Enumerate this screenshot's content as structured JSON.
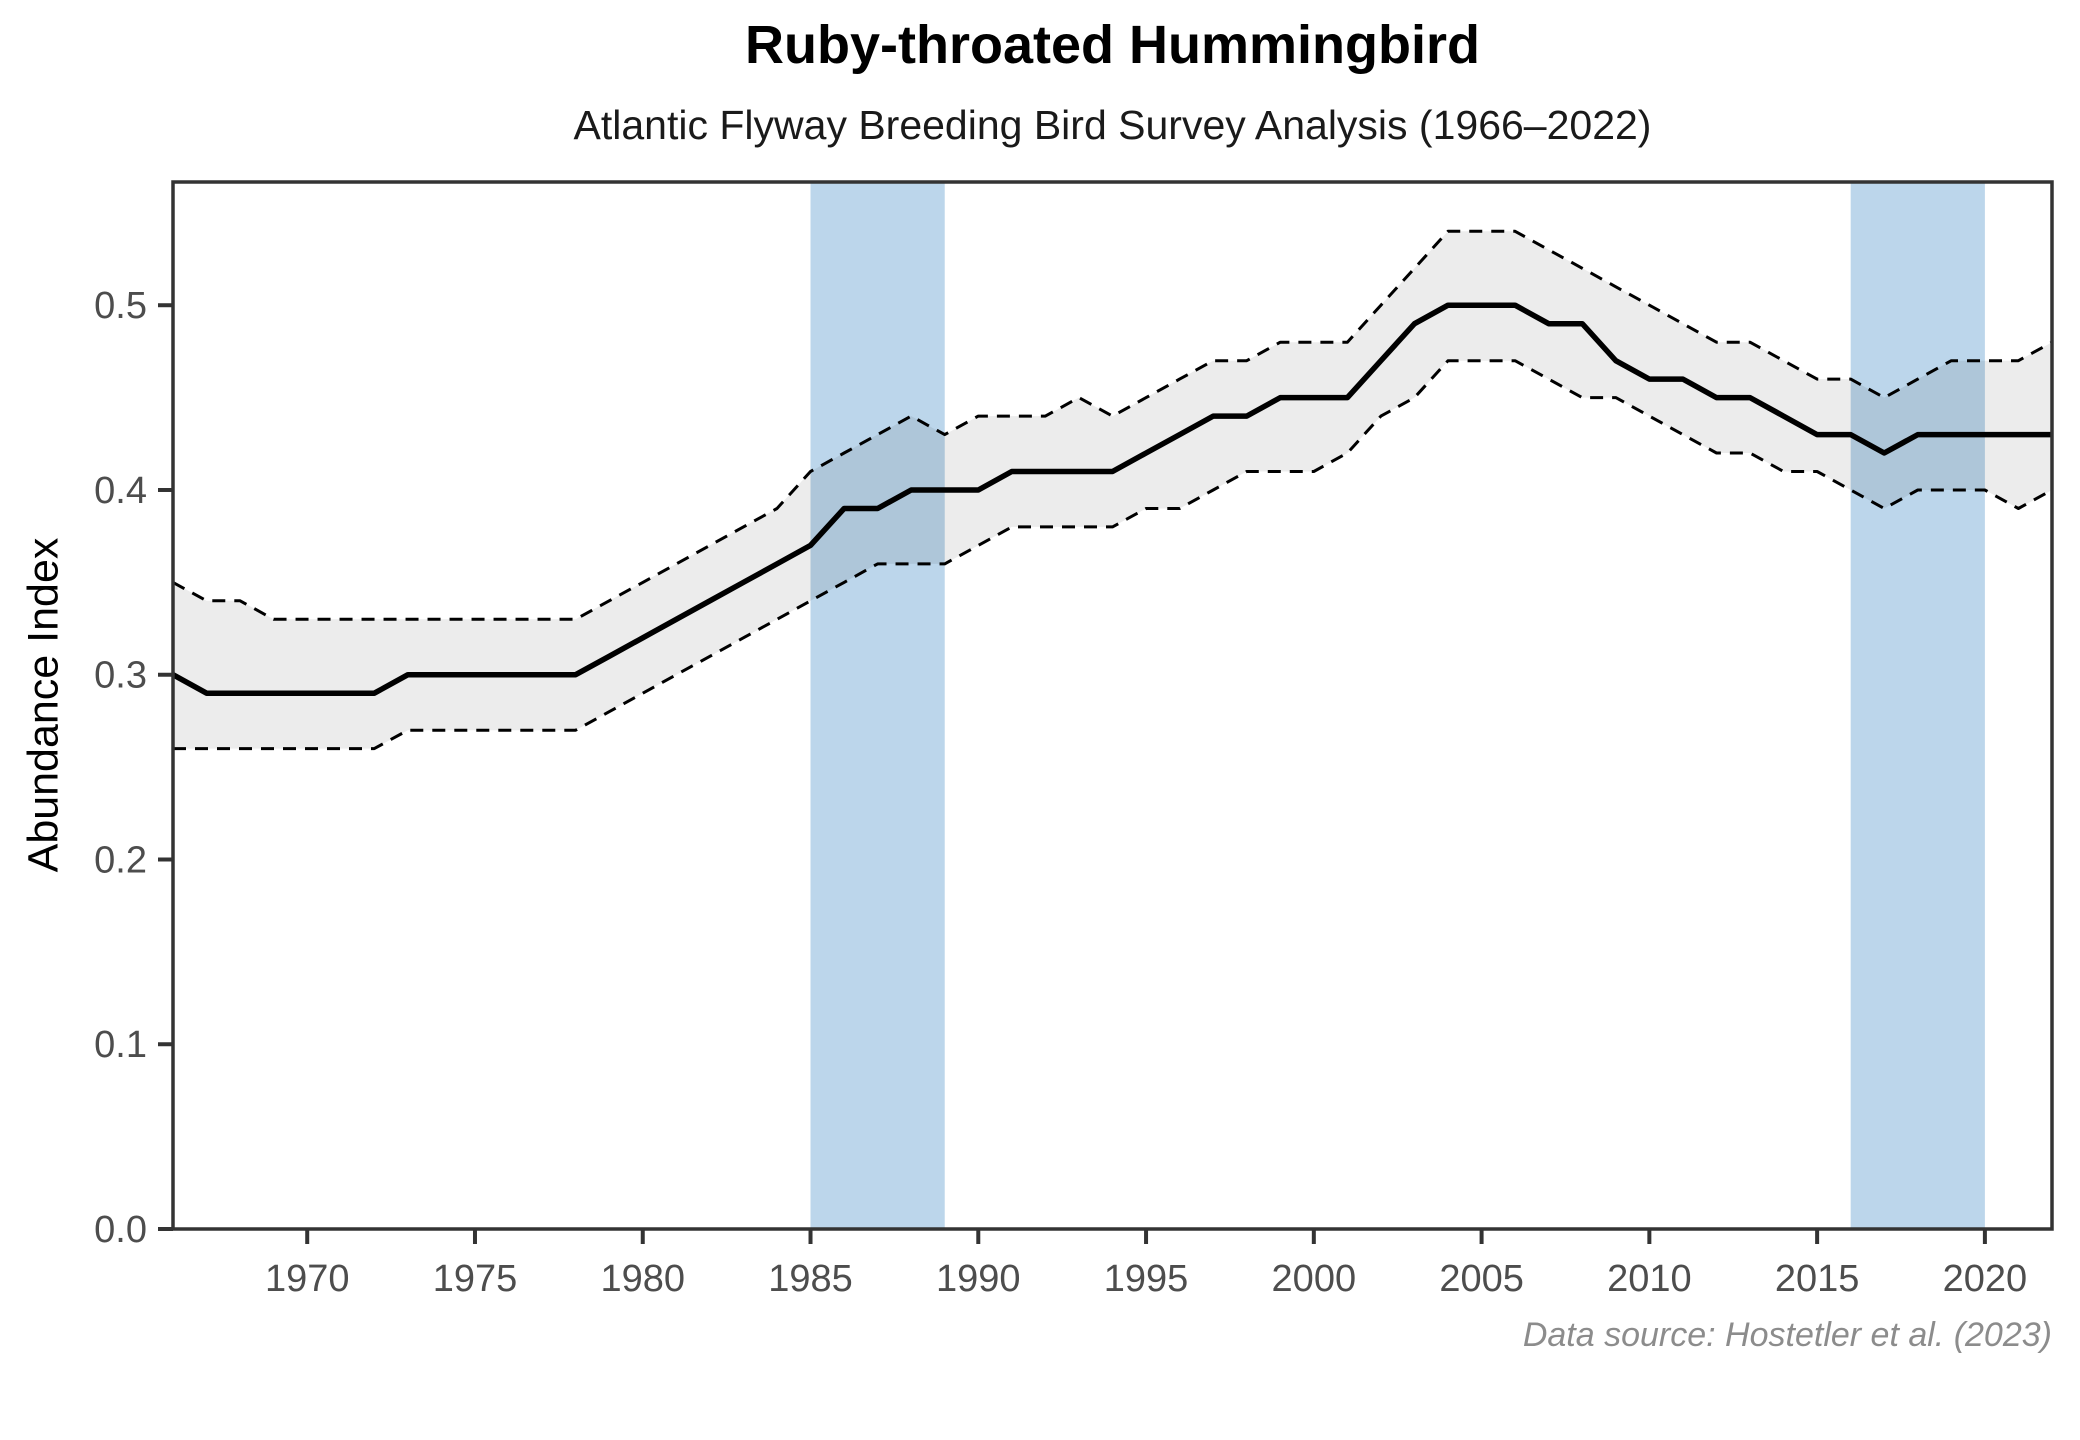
{
  "title": "Ruby-throated Hummingbird",
  "subtitle": "Atlantic Flyway Breeding Bird Survey Analysis (1966–2022)",
  "caption": "Data source: Hostetler et al. (2023)",
  "chart_data": {
    "type": "line",
    "title": "Ruby-throated Hummingbird",
    "subtitle": "Atlantic Flyway Breeding Bird Survey Analysis (1966–2022)",
    "xlabel": "",
    "ylabel": "Abundance Index",
    "xlim": [
      1966,
      2022
    ],
    "ylim": [
      0,
      0.5667
    ],
    "x_ticks": [
      1970,
      1975,
      1980,
      1985,
      1990,
      1995,
      2000,
      2005,
      2010,
      2015,
      2020
    ],
    "y_ticks": [
      0.0,
      0.1,
      0.2,
      0.3,
      0.4,
      0.5
    ],
    "grid": false,
    "legend": "none",
    "x": [
      1966,
      1967,
      1968,
      1969,
      1970,
      1971,
      1972,
      1973,
      1974,
      1975,
      1976,
      1977,
      1978,
      1979,
      1980,
      1981,
      1982,
      1983,
      1984,
      1985,
      1986,
      1987,
      1988,
      1989,
      1990,
      1991,
      1992,
      1993,
      1994,
      1995,
      1996,
      1997,
      1998,
      1999,
      2000,
      2001,
      2002,
      2003,
      2004,
      2005,
      2006,
      2007,
      2008,
      2009,
      2010,
      2011,
      2012,
      2013,
      2014,
      2015,
      2016,
      2017,
      2018,
      2019,
      2020,
      2021,
      2022
    ],
    "series": [
      {
        "name": "Abundance index",
        "style": "solid",
        "values": [
          0.3,
          0.29,
          0.29,
          0.29,
          0.29,
          0.29,
          0.29,
          0.3,
          0.3,
          0.3,
          0.3,
          0.3,
          0.3,
          0.31,
          0.32,
          0.33,
          0.34,
          0.35,
          0.36,
          0.37,
          0.39,
          0.39,
          0.4,
          0.4,
          0.4,
          0.41,
          0.41,
          0.41,
          0.41,
          0.42,
          0.43,
          0.44,
          0.44,
          0.45,
          0.45,
          0.45,
          0.47,
          0.49,
          0.5,
          0.5,
          0.5,
          0.49,
          0.49,
          0.47,
          0.46,
          0.46,
          0.45,
          0.45,
          0.44,
          0.43,
          0.43,
          0.42,
          0.43,
          0.43,
          0.43,
          0.43,
          0.43
        ]
      },
      {
        "name": "Lower 95% CI",
        "style": "dashed",
        "values": [
          0.26,
          0.26,
          0.26,
          0.26,
          0.26,
          0.26,
          0.26,
          0.27,
          0.27,
          0.27,
          0.27,
          0.27,
          0.27,
          0.28,
          0.29,
          0.3,
          0.31,
          0.32,
          0.33,
          0.34,
          0.35,
          0.36,
          0.36,
          0.36,
          0.37,
          0.38,
          0.38,
          0.38,
          0.38,
          0.39,
          0.39,
          0.4,
          0.41,
          0.41,
          0.41,
          0.42,
          0.44,
          0.45,
          0.47,
          0.47,
          0.47,
          0.46,
          0.45,
          0.45,
          0.44,
          0.43,
          0.42,
          0.42,
          0.41,
          0.41,
          0.4,
          0.39,
          0.4,
          0.4,
          0.4,
          0.39,
          0.4
        ]
      },
      {
        "name": "Upper 95% CI",
        "style": "dashed",
        "values": [
          0.35,
          0.34,
          0.34,
          0.33,
          0.33,
          0.33,
          0.33,
          0.33,
          0.33,
          0.33,
          0.33,
          0.33,
          0.33,
          0.34,
          0.35,
          0.36,
          0.37,
          0.38,
          0.39,
          0.41,
          0.42,
          0.43,
          0.44,
          0.43,
          0.44,
          0.44,
          0.44,
          0.45,
          0.44,
          0.45,
          0.46,
          0.47,
          0.47,
          0.48,
          0.48,
          0.48,
          0.5,
          0.52,
          0.54,
          0.54,
          0.54,
          0.53,
          0.52,
          0.51,
          0.5,
          0.49,
          0.48,
          0.48,
          0.47,
          0.46,
          0.46,
          0.45,
          0.46,
          0.47,
          0.47,
          0.47,
          0.48
        ]
      }
    ],
    "highlight_bands": [
      {
        "x_start": 1985,
        "x_end": 1989
      },
      {
        "x_start": 2016,
        "x_end": 2020
      }
    ],
    "colors": {
      "line": "#000000",
      "ci_line": "#000000",
      "ribbon_fill_over_white": "#ececec",
      "band_fill": "#bcd6eb",
      "panel_border": "#333333",
      "tick_mark": "#333333",
      "tick_label": "#4d4d4d",
      "background": "#ffffff"
    }
  },
  "layout_note": "CI ribbon is semi-transparent grey drawn over blue bands"
}
